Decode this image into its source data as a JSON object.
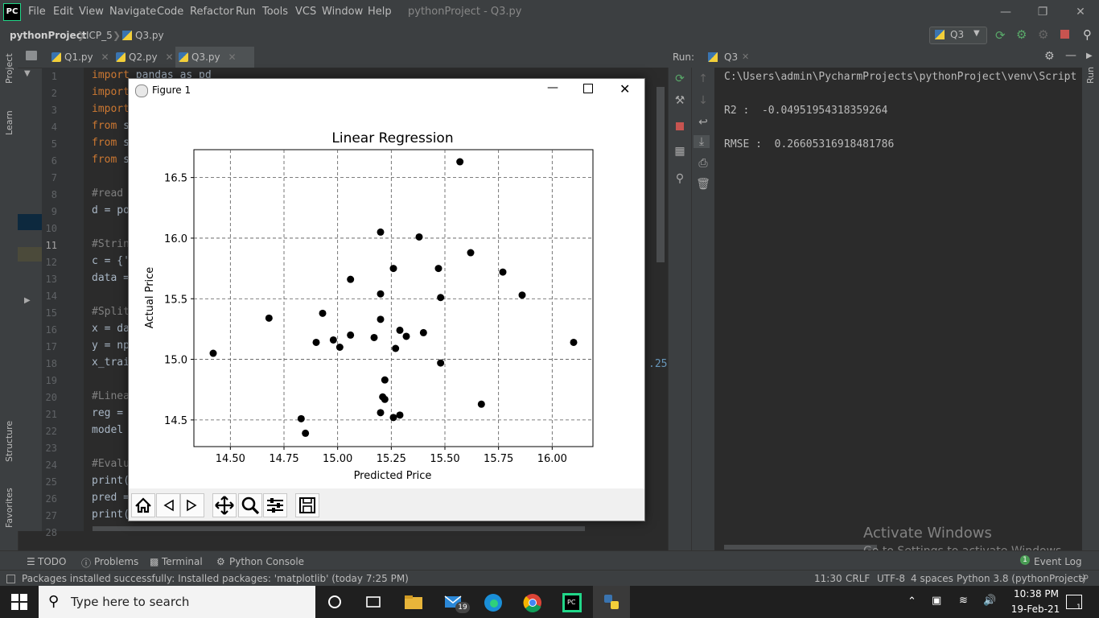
{
  "menu": {
    "logo": "PC",
    "items": [
      "File",
      "Edit",
      "View",
      "Navigate",
      "Code",
      "Refactor",
      "Run",
      "Tools",
      "VCS",
      "Window",
      "Help"
    ],
    "title": "pythonProject - Q3.py"
  },
  "navbar": {
    "crumbs": [
      "pythonProject",
      "ICP_5",
      "Q3.py"
    ],
    "run_config": "Q3"
  },
  "side_labels": {
    "project": "Project",
    "learn": "Learn",
    "structure": "Structure",
    "favorites": "Favorites",
    "run_right": "Run"
  },
  "tabs": [
    "Q1.py",
    "Q2.py",
    "Q3.py"
  ],
  "gutter_lines": [
    "1",
    "2",
    "3",
    "4",
    "5",
    "6",
    "7",
    "8",
    "9",
    "10",
    "11",
    "12",
    "13",
    "14",
    "15",
    "16",
    "17",
    "18",
    "19",
    "20",
    "21",
    "22",
    "23",
    "24",
    "25",
    "26",
    "27",
    "28"
  ],
  "code": [
    {
      "kw": "import",
      "rest": " pandas as pd"
    },
    {
      "kw": "import",
      "rest": ""
    },
    {
      "kw": "import",
      "rest": ""
    },
    {
      "kw": "from",
      "rest": " s"
    },
    {
      "kw": "from",
      "rest": " s"
    },
    {
      "kw": "from",
      "rest": " s"
    },
    {
      "cm": "#read"
    },
    {
      "tx": "d = po"
    },
    {
      "cm": "#Strin"
    },
    {
      "tx": "c = {'"
    },
    {
      "tx": "data ="
    },
    {
      "cm": "#Split"
    },
    {
      "tx": "x = da"
    },
    {
      "tx": "y = np"
    },
    {
      "tx": "x_trai"
    },
    {
      "cm": "#Linea"
    },
    {
      "tx": "reg ="
    },
    {
      "tx": "model"
    },
    {
      "cm": "#Evalu"
    },
    {
      "tx": "print("
    },
    {
      "tx": "pred ="
    },
    {
      "tx": "print("
    }
  ],
  "editor_hint": ".25)",
  "run_panel": {
    "label": "Run:",
    "tab": "Q3",
    "path": "C:\\Users\\admin\\PycharmProjects\\pythonProject\\venv\\Script",
    "r2": "R2 :  -0.04951954318359264",
    "rmse": "RMSE :  0.26605316918481786"
  },
  "bottom_tabs": [
    "TODO",
    "Problems",
    "Terminal",
    "Python Console"
  ],
  "event_log": {
    "count": "1",
    "label": "Event Log"
  },
  "status": {
    "message": "Packages installed successfully: Installed packages: 'matplotlib' (today 7:25 PM)",
    "position": "11:30",
    "line_sep": "CRLF",
    "encoding": "UTF-8",
    "indent": "4 spaces",
    "interpreter": "Python 3.8 (pythonProject)"
  },
  "activate": {
    "title": "Activate Windows",
    "subtitle": "Go to Settings to activate Windows."
  },
  "figure": {
    "window_title": "Figure 1"
  },
  "chart_data": {
    "type": "scatter",
    "title": "Linear Regression",
    "xlabel": "Predicted Price",
    "ylabel": "Actual Price",
    "xlim": [
      14.33,
      16.19
    ],
    "ylim": [
      14.28,
      16.73
    ],
    "xticks": [
      "14.50",
      "14.75",
      "15.00",
      "15.25",
      "15.50",
      "15.75",
      "16.00"
    ],
    "xtick_values": [
      14.5,
      14.75,
      15.0,
      15.25,
      15.5,
      15.75,
      16.0
    ],
    "yticks": [
      "14.5",
      "15.0",
      "15.5",
      "16.0",
      "16.5"
    ],
    "ytick_values": [
      14.5,
      15.0,
      15.5,
      16.0,
      16.5
    ],
    "grid": true,
    "marker_color": "#000000",
    "points": [
      [
        14.42,
        15.05
      ],
      [
        14.68,
        15.34
      ],
      [
        14.83,
        14.51
      ],
      [
        14.85,
        14.39
      ],
      [
        14.9,
        15.14
      ],
      [
        14.93,
        15.38
      ],
      [
        14.98,
        15.16
      ],
      [
        15.01,
        15.1
      ],
      [
        15.06,
        15.2
      ],
      [
        15.06,
        15.66
      ],
      [
        15.17,
        15.18
      ],
      [
        15.2,
        15.54
      ],
      [
        15.2,
        15.33
      ],
      [
        15.2,
        16.05
      ],
      [
        15.21,
        14.69
      ],
      [
        15.2,
        14.56
      ],
      [
        15.22,
        14.83
      ],
      [
        15.22,
        14.67
      ],
      [
        15.26,
        15.75
      ],
      [
        15.27,
        15.09
      ],
      [
        15.26,
        14.52
      ],
      [
        15.29,
        14.54
      ],
      [
        15.29,
        15.24
      ],
      [
        15.32,
        15.19
      ],
      [
        15.38,
        16.01
      ],
      [
        15.4,
        15.22
      ],
      [
        15.47,
        15.75
      ],
      [
        15.48,
        15.51
      ],
      [
        15.48,
        14.97
      ],
      [
        15.57,
        16.63
      ],
      [
        15.62,
        15.88
      ],
      [
        15.67,
        14.63
      ],
      [
        15.77,
        15.72
      ],
      [
        15.86,
        15.53
      ],
      [
        16.1,
        15.14
      ]
    ]
  },
  "taskbar": {
    "search_placeholder": "Type here to search",
    "time": "10:38 PM",
    "date": "19-Feb-21",
    "mail_badge": "19",
    "notification_count": "1"
  }
}
